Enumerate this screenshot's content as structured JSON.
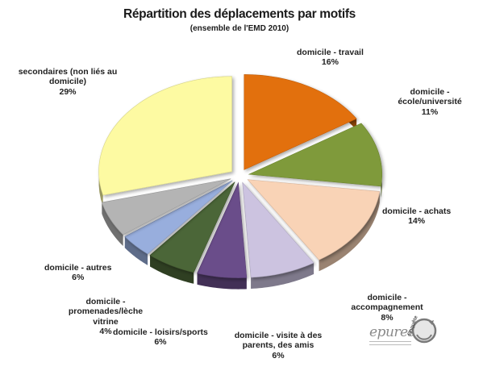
{
  "chart_data": {
    "type": "pie",
    "title": "Répartition des déplacements par motifs",
    "subtitle": "(ensemble de l'EMD 2010)",
    "slices": [
      {
        "label": "domicile - travail",
        "value": 16,
        "value_label": "16%",
        "color": "#e2700f"
      },
      {
        "label": "domicile - école/université",
        "value": 11,
        "value_label": "11%",
        "color": "#7f9a3a"
      },
      {
        "label": "domicile - achats",
        "value": 14,
        "value_label": "14%",
        "color": "#f9d3b6"
      },
      {
        "label": "domicile - accompagnement",
        "value": 8,
        "value_label": "8%",
        "color": "#ccc3e0"
      },
      {
        "label": "domicile - visite à des parents, des amis",
        "value": 6,
        "value_label": "6%",
        "color": "#6a4d8a"
      },
      {
        "label": "domicile - loisirs/sports",
        "value": 6,
        "value_label": "6%",
        "color": "#4c6637"
      },
      {
        "label": "domicile - promenades/lèche vitrine",
        "value": 4,
        "value_label": "4%",
        "color": "#98aedd"
      },
      {
        "label": "domicile - autres",
        "value": 6,
        "value_label": "6%",
        "color": "#b4b4b4"
      },
      {
        "label": "secondaires (non liés au domicile)",
        "value": 29,
        "value_label": "29%",
        "color": "#fdfaa2"
      }
    ],
    "legend": "none"
  },
  "logos": {
    "epures": "epures",
    "enquete": "Enquête"
  }
}
